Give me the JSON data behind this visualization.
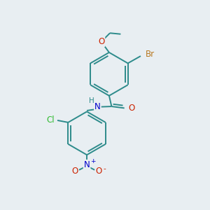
{
  "background_color": "#e8eef2",
  "bond_color": "#2d8b8b",
  "bond_width": 1.4,
  "atom_colors": {
    "C": "#2d8b8b",
    "H": "#2d8b8b",
    "N": "#0000cc",
    "O": "#cc2200",
    "Br": "#b87820",
    "Cl": "#33bb33"
  },
  "font_size": 8.5
}
